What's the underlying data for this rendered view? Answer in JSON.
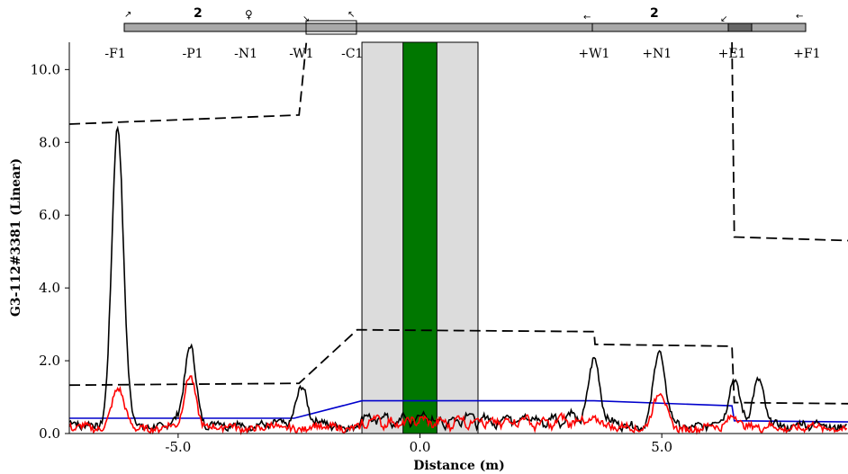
{
  "chart_data": {
    "type": "line",
    "xlabel": "Distance (m)",
    "ylabel": "G3-112#3381 (Linear)",
    "xlim": [
      -7.25,
      8.85
    ],
    "ylim": [
      0.0,
      10.75
    ],
    "x_ticks": [
      -5.0,
      0.0,
      5.0
    ],
    "x_tick_labels": [
      "-5.0",
      "0.0",
      "5.0"
    ],
    "y_ticks": [
      0.0,
      2.0,
      4.0,
      6.0,
      8.0,
      10.0
    ],
    "y_tick_labels": [
      "0.0",
      "2.0",
      "4.0",
      "6.0",
      "8.0",
      "10.0"
    ],
    "grid": false,
    "regions": [
      {
        "kind": "shade",
        "x0": -1.2,
        "x1": 1.2,
        "color": "#dcdcdc"
      },
      {
        "kind": "band",
        "x0": -0.35,
        "x1": 0.35,
        "color": "#007700"
      }
    ],
    "position_markers": [
      {
        "label": "-F1",
        "x": -6.3
      },
      {
        "label": "-P1",
        "x": -4.7
      },
      {
        "label": "-N1",
        "x": -3.6
      },
      {
        "label": "-W1",
        "x": -2.45
      },
      {
        "label": "-C1",
        "x": -1.4
      },
      {
        "label": "+W1",
        "x": 3.6
      },
      {
        "label": "+N1",
        "x": 4.9
      },
      {
        "label": "+E1",
        "x": 6.45
      },
      {
        "label": "+F1",
        "x": 8.0
      }
    ],
    "series": [
      {
        "style": "dashed",
        "color": "#000000",
        "points": [
          [
            -7.25,
            8.5
          ],
          [
            -2.5,
            8.75
          ],
          [
            -2.35,
            10.75
          ]
        ]
      },
      {
        "style": "dashed",
        "color": "#000000",
        "points": [
          [
            6.45,
            10.75
          ],
          [
            6.5,
            5.4
          ],
          [
            8.85,
            5.3
          ]
        ]
      },
      {
        "style": "dashed",
        "color": "#000000",
        "points": [
          [
            -7.25,
            1.33
          ],
          [
            -2.5,
            1.38
          ],
          [
            -1.3,
            2.85
          ],
          [
            3.6,
            2.8
          ],
          [
            3.62,
            2.45
          ],
          [
            6.45,
            2.4
          ],
          [
            6.5,
            0.85
          ],
          [
            8.85,
            0.82
          ]
        ]
      },
      {
        "style": "solid",
        "color": "#0000cc",
        "points": [
          [
            -7.25,
            0.42
          ],
          [
            -2.6,
            0.42
          ],
          [
            -1.2,
            0.9
          ],
          [
            3.6,
            0.9
          ],
          [
            6.45,
            0.76
          ],
          [
            6.5,
            0.35
          ],
          [
            8.85,
            0.32
          ]
        ]
      },
      {
        "style": "solid",
        "color": "#000000",
        "peaks": [
          [
            -6.25,
            8.5
          ],
          [
            -4.75,
            2.55
          ],
          [
            -2.45,
            1.45
          ],
          [
            3.6,
            2.25
          ],
          [
            4.95,
            2.35
          ],
          [
            6.5,
            1.65
          ],
          [
            7.0,
            1.5
          ]
        ]
      },
      {
        "style": "solid",
        "color": "#ff0000",
        "peaks": [
          [
            -6.25,
            1.35
          ],
          [
            -4.75,
            1.65
          ],
          [
            3.6,
            0.55
          ],
          [
            4.95,
            1.25
          ],
          [
            6.5,
            0.6
          ]
        ]
      }
    ]
  }
}
